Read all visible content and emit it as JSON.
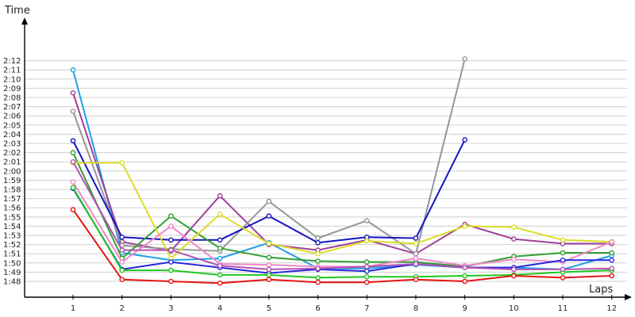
{
  "chart_data": {
    "type": "line",
    "x_title": "Laps",
    "y_title": "Time",
    "x": [
      1,
      2,
      3,
      4,
      5,
      6,
      7,
      8,
      9,
      10,
      11,
      12
    ],
    "y_ticks": [
      "1:48",
      "1:49",
      "1:50",
      "1:51",
      "1:52",
      "1:53",
      "1:54",
      "1:55",
      "1:56",
      "1:57",
      "1:58",
      "1:59",
      "2:00",
      "2:01",
      "2:02",
      "2:03",
      "2:04",
      "2:05",
      "2:06",
      "2:07",
      "2:08",
      "2:09",
      "2:10",
      "2:11",
      "2:12"
    ],
    "ylim": [
      "1:47",
      "2:13"
    ],
    "grid": true,
    "series": [
      {
        "color": "#1ea0e6",
        "values": [
          "2:11.0",
          "1:51.1",
          "1:50.3",
          "1:50.5",
          "1:52.2",
          "1:49.4",
          "1:49.4",
          "1:49.8",
          "1:49.5",
          "1:49.5",
          "1:49.3",
          "1:50.8"
        ]
      },
      {
        "color": "#a0409a",
        "values": [
          "2:08.5",
          "1:52.3",
          "1:51.3",
          "1:57.3",
          "1:52.0",
          "1:51.4",
          "1:52.5",
          "1:51.0",
          "1:54.2",
          "1:52.6",
          "1:52.1",
          "1:52.1"
        ]
      },
      {
        "color": "#969696",
        "values": [
          "2:06.5",
          "1:51.9",
          "1:51.5",
          "1:51.3",
          "1:56.7",
          "1:52.7",
          "1:54.6",
          "1:51.0",
          "2:12.2",
          null,
          null,
          null
        ]
      },
      {
        "color": "#1616c0",
        "values": [
          "2:03.3",
          "1:52.8",
          "1:52.5",
          "1:52.5",
          "1:55.1",
          "1:52.2",
          "1:52.8",
          "1:52.7",
          "2:03.4",
          null,
          null,
          null
        ]
      },
      {
        "color": "#32a032",
        "values": [
          "2:02.0",
          "1:50.5",
          "1:55.1",
          "1:51.6",
          "1:50.6",
          "1:50.2",
          "1:50.1",
          "1:50.1",
          "1:49.6",
          "1:50.7",
          "1:51.1",
          "1:51.1"
        ]
      },
      {
        "color": "#dcdc28",
        "values": [
          "2:00.9",
          "2:00.9",
          "1:50.5",
          "1:55.3",
          "1:52.1",
          "1:51.0",
          "1:52.4",
          "1:52.1",
          "1:54.0",
          "1:53.9",
          "1:52.5",
          "1:52.3"
        ]
      },
      {
        "color": "#f087c8",
        "values": [
          "1:58.8",
          "1:50.1",
          "1:54.0",
          "1:49.9",
          "1:49.8",
          "1:49.6",
          "1:49.6",
          "1:50.5",
          "1:49.7",
          "1:50.4",
          "1:50.1",
          "1:52.3"
        ]
      },
      {
        "color": "#2828dc",
        "values": [
          "1:58.1",
          "1:49.3",
          "1:50.1",
          "1:49.5",
          "1:48.9",
          "1:49.3",
          "1:49.1",
          "1:49.9",
          "1:49.5",
          "1:49.5",
          "1:50.3",
          "1:50.3"
        ]
      },
      {
        "color": "#1ec81e",
        "values": [
          "1:58.2",
          "1:49.2",
          "1:49.2",
          "1:48.7",
          "1:48.7",
          "1:48.4",
          "1:48.5",
          "1:48.5",
          "1:48.6",
          "1:48.7",
          "1:49.0",
          "1:49.2"
        ]
      },
      {
        "color": "#b450b4",
        "values": [
          "2:01.0",
          "1:51.4",
          "1:51.4",
          "1:49.7",
          "1:49.3",
          "1:49.4",
          "1:49.6",
          "1:49.9",
          "1:49.5",
          "1:49.3",
          "1:49.3",
          "1:49.4"
        ]
      },
      {
        "color": "#e61414",
        "values": [
          "1:55.8",
          "1:48.2",
          "1:48.0",
          "1:47.8",
          "1:48.2",
          "1:47.9",
          "1:47.9",
          "1:48.2",
          "1:48.0",
          "1:48.6",
          "1:48.4",
          "1:48.6"
        ]
      }
    ]
  }
}
